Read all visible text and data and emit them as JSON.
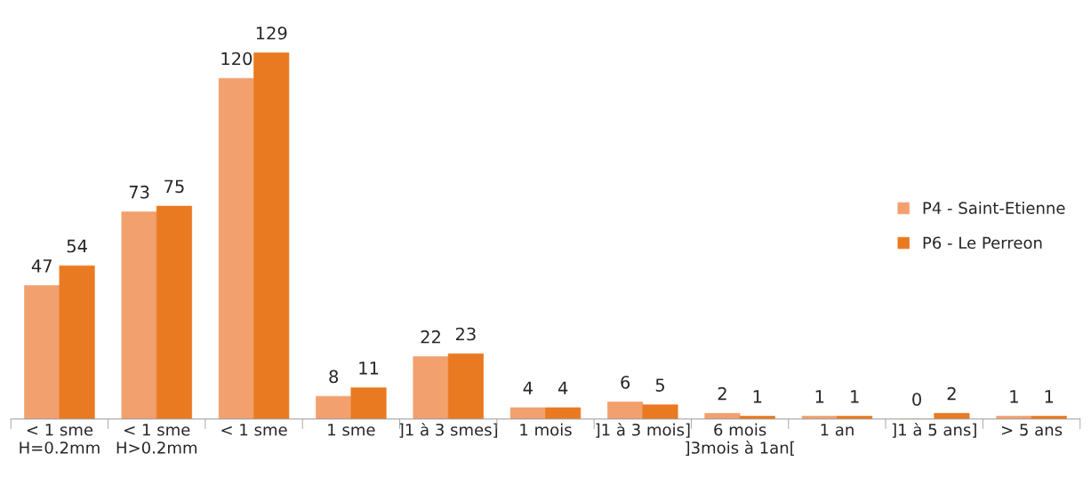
{
  "chart_data": {
    "type": "bar",
    "categories": [
      "< 1 sme\nH=0.2mm",
      "< 1 sme\nH>0.2mm",
      "< 1 sme",
      "1 sme",
      "]1 à 3 smes]",
      "1 mois",
      "]1 à 3 mois]",
      "6 mois\n]3mois à 1an[",
      "1 an",
      "]1 à 5 ans]",
      "> 5 ans"
    ],
    "series": [
      {
        "name": "P4 - Saint-Etienne",
        "color": "#f2a06e",
        "values": [
          47,
          73,
          120,
          8,
          22,
          4,
          6,
          2,
          1,
          0,
          1
        ]
      },
      {
        "name": "P6 - Le Perreon",
        "color": "#e97a22",
        "values": [
          54,
          75,
          129,
          11,
          23,
          4,
          5,
          1,
          1,
          2,
          1
        ]
      }
    ],
    "data_labels": true,
    "legend": "right",
    "grid": false
  }
}
